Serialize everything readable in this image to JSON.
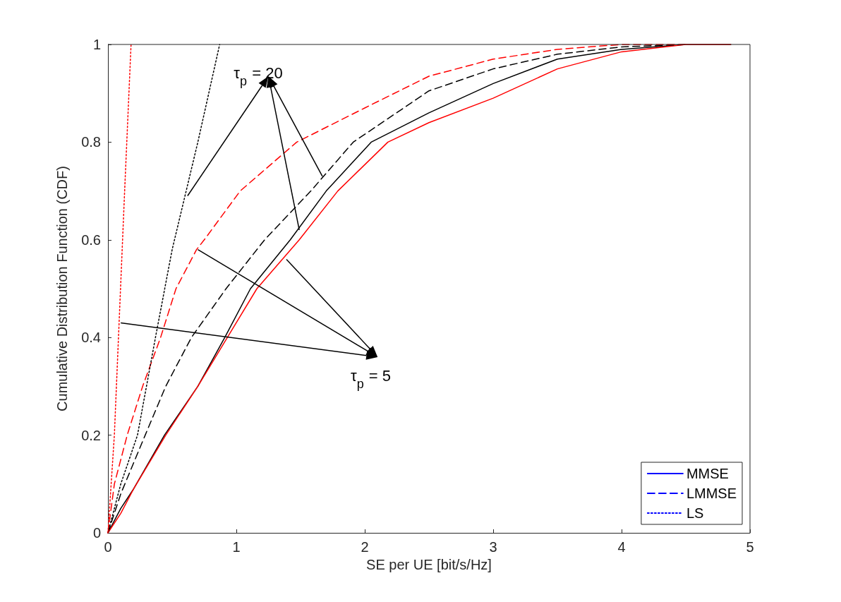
{
  "chart_data": {
    "type": "line",
    "xlabel": "SE per UE [bit/s/Hz]",
    "ylabel": "Cumulative Distribution Function (CDF)",
    "xlim": [
      0,
      5
    ],
    "xticks": [
      0,
      1,
      2,
      3,
      4,
      5
    ],
    "ylim": [
      0,
      1
    ],
    "yticks": [
      0,
      0.2,
      0.4,
      0.6,
      0.8,
      1
    ],
    "grid": false,
    "legend": "bottom right",
    "marker": "none",
    "annotations": [
      {
        "text": "τ$_{p}$ = 20",
        "x": 0.62,
        "y": 0.69
      },
      {
        "text": "τ$_{p}$ = 5",
        "x": 0.1,
        "y": 0.43
      }
    ],
    "series": [
      {
        "color": "#000000",
        "line_style": "solid",
        "x": [
          0,
          0.1,
          0.2,
          0.44,
          0.7,
          0.91,
          1.11,
          1.42,
          1.7,
          2.05,
          2.5,
          3,
          3.5,
          4,
          4.5,
          4.85
        ],
        "values": [
          0,
          0.05,
          0.09,
          0.2,
          0.3,
          0.4,
          0.5,
          0.6,
          0.7,
          0.8,
          0.86,
          0.92,
          0.97,
          0.99,
          1,
          1
        ]
      },
      {
        "color": "#ff0000",
        "line_style": "solid",
        "x": [
          0,
          0.1,
          0.2,
          0.45,
          0.7,
          0.93,
          1.16,
          1.49,
          1.79,
          2.18,
          2.5,
          3,
          3.5,
          4,
          4.5,
          4.85
        ],
        "values": [
          0,
          0.04,
          0.09,
          0.2,
          0.3,
          0.4,
          0.5,
          0.6,
          0.7,
          0.8,
          0.84,
          0.89,
          0.95,
          0.985,
          1,
          1
        ]
      },
      {
        "color": "#000000",
        "line_style": "dashed",
        "x": [
          0,
          0.1,
          0.29,
          0.45,
          0.65,
          0.92,
          1.22,
          1.58,
          1.91,
          2.5,
          3,
          3.5,
          4,
          4.5
        ],
        "values": [
          0,
          0.08,
          0.2,
          0.3,
          0.4,
          0.5,
          0.6,
          0.7,
          0.8,
          0.905,
          0.95,
          0.98,
          0.995,
          1
        ]
      },
      {
        "color": "#ff0000",
        "line_style": "dashed",
        "x": [
          0,
          0.05,
          0.15,
          0.27,
          0.41,
          0.53,
          0.69,
          0.75,
          1.03,
          1.47,
          2,
          2.5,
          3,
          3.5,
          4,
          4.5
        ],
        "values": [
          0,
          0.1,
          0.2,
          0.3,
          0.4,
          0.5,
          0.58,
          0.6,
          0.7,
          0.8,
          0.87,
          0.935,
          0.97,
          0.99,
          1,
          1
        ]
      },
      {
        "color": "#000000",
        "line_style": "dotted",
        "x": [
          0,
          0.1,
          0.23,
          0.37,
          0.5,
          0.6,
          0.7,
          0.87
        ],
        "values": [
          0,
          0.1,
          0.2,
          0.4,
          0.58,
          0.69,
          0.8,
          1
        ]
      },
      {
        "color": "#ff0000",
        "line_style": "dotted",
        "x": [
          0,
          0.05,
          0.09,
          0.13,
          0.18
        ],
        "values": [
          0,
          0.2,
          0.45,
          0.7,
          1
        ]
      },
      {
        "name": "MMSE",
        "color": "#0000ff",
        "line_style": "solid"
      },
      {
        "name": "LMMSE",
        "color": "#0000ff",
        "line_style": "dashed"
      },
      {
        "name": "LS",
        "color": "#0000ff",
        "line_style": "dotted"
      }
    ]
  }
}
